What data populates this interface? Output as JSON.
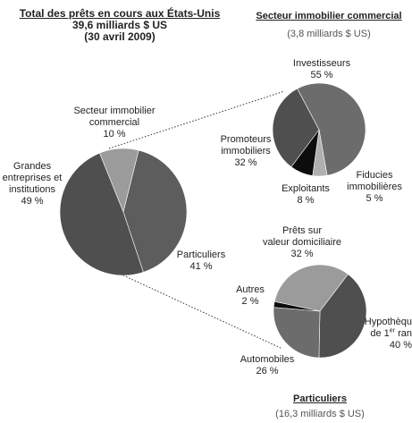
{
  "colors": {
    "pie_dark": "#4f4f4f",
    "pie_mid": "#5d5d5d",
    "pie_light": "#9b9b9b",
    "pie_black": "#0d0d0d",
    "pie_lighter": "#b0b0b0",
    "pie_gray": "#6c6c6c",
    "text": "#222222"
  },
  "chart_data": [
    {
      "type": "pie",
      "title": "Total des prêts en cours aux États-Unis",
      "subtitle_amount": "39,6 milliards $ US",
      "subtitle_date": "(30 avril 2009)",
      "slices": [
        {
          "label_line1": "Secteur immobilier",
          "label_line2": "commercial",
          "value": 10,
          "value_label": "10 %"
        },
        {
          "label_line1": "Particuliers",
          "label_line2": "",
          "value": 41,
          "value_label": "41 %"
        },
        {
          "label_line1": "Grandes",
          "label_line2": "entreprises et",
          "label_line3": "institutions",
          "value": 49,
          "value_label": "49 %"
        }
      ]
    },
    {
      "type": "pie",
      "title": "Secteur immobilier commercial",
      "subtitle_amount": "(3,8 milliards $ US)",
      "slices": [
        {
          "label_line1": "Investisseurs",
          "value": 55,
          "value_label": "55 %"
        },
        {
          "label_line1": "Fiducies",
          "label_line2": "immobilières",
          "value": 5,
          "value_label": "5 %"
        },
        {
          "label_line1": "Exploitants",
          "value": 8,
          "value_label": "8 %"
        },
        {
          "label_line1": "Promoteurs",
          "label_line2": "immobiliers",
          "value": 32,
          "value_label": "32 %"
        }
      ]
    },
    {
      "type": "pie",
      "title": "Particuliers",
      "subtitle_amount": "(16,3 milliards $ US)",
      "slices": [
        {
          "label_line1": "Prêts sur",
          "label_line2": "valeur domiciliaire",
          "value": 32,
          "value_label": "32 %"
        },
        {
          "label_line1": "Hypothèqu",
          "label_line2a": "de 1",
          "label_line2sup": "er",
          "label_line2b": " ran",
          "value": 40,
          "value_label": "40 %"
        },
        {
          "label_line1": "Automobiles",
          "value": 26,
          "value_label": "26 %"
        },
        {
          "label_line1": "Autres",
          "value": 2,
          "value_label": "2 %"
        }
      ]
    }
  ]
}
